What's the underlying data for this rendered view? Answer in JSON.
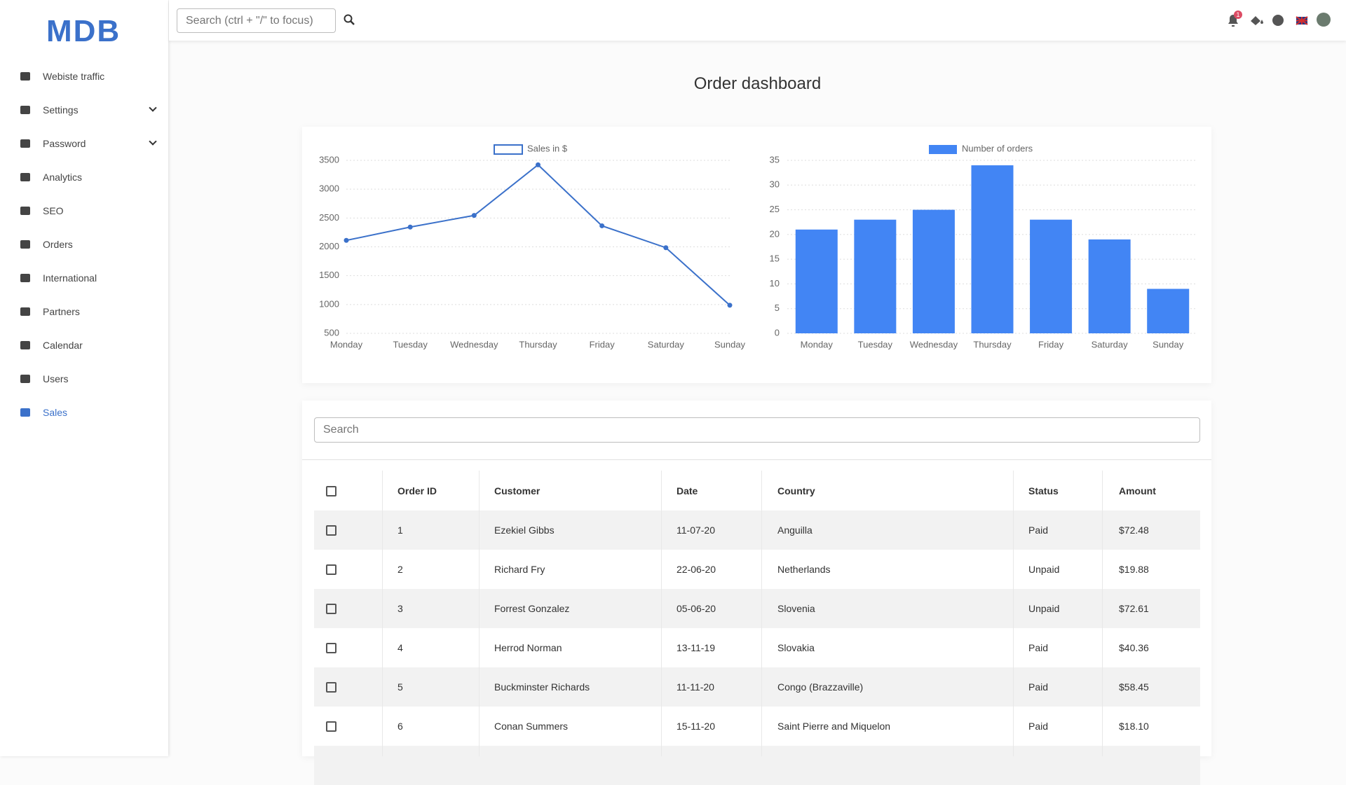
{
  "sidebar": {
    "logo": "MDB",
    "items": [
      {
        "label": "Webiste traffic"
      },
      {
        "label": "Settings",
        "expandable": true
      },
      {
        "label": "Password",
        "expandable": true
      },
      {
        "label": "Analytics"
      },
      {
        "label": "SEO"
      },
      {
        "label": "Orders"
      },
      {
        "label": "International"
      },
      {
        "label": "Partners"
      },
      {
        "label": "Calendar"
      },
      {
        "label": "Users"
      },
      {
        "label": "Sales",
        "active": true
      }
    ]
  },
  "header": {
    "search_placeholder": "Search (ctrl + \"/\" to focus)",
    "notification_count": 1
  },
  "page_title": "Order dashboard",
  "chart_data": [
    {
      "type": "line",
      "categories": [
        "Monday",
        "Tuesday",
        "Wednesday",
        "Thursday",
        "Friday",
        "Saturday",
        "Sunday"
      ],
      "series": [
        {
          "name": "Sales in $",
          "color": "#3b71ca",
          "values": [
            2112,
            2343,
            2545,
            3423,
            2365,
            1985,
            987
          ]
        }
      ],
      "ylim": [
        500,
        3500
      ],
      "yticks": [
        500,
        1000,
        1500,
        2000,
        2500,
        3000,
        3500
      ],
      "grid": true
    },
    {
      "type": "bar",
      "categories": [
        "Monday",
        "Tuesday",
        "Wednesday",
        "Thursday",
        "Friday",
        "Saturday",
        "Sunday"
      ],
      "series": [
        {
          "name": "Number of orders",
          "color": "#4285f4",
          "values": [
            21,
            23,
            25,
            34,
            23,
            19,
            9
          ]
        }
      ],
      "ylim": [
        0,
        35
      ],
      "yticks": [
        0,
        5,
        10,
        15,
        20,
        25,
        30,
        35
      ],
      "grid": true
    }
  ],
  "table": {
    "search_placeholder": "Search",
    "columns": [
      "Order ID",
      "Customer",
      "Date",
      "Country",
      "Status",
      "Amount"
    ],
    "rows": [
      [
        1,
        "Ezekiel Gibbs",
        "11-07-20",
        "Anguilla",
        "Paid",
        "$72.48"
      ],
      [
        2,
        "Richard Fry",
        "22-06-20",
        "Netherlands",
        "Unpaid",
        "$19.88"
      ],
      [
        3,
        "Forrest Gonzalez",
        "05-06-20",
        "Slovenia",
        "Unpaid",
        "$72.61"
      ],
      [
        4,
        "Herrod Norman",
        "13-11-19",
        "Slovakia",
        "Paid",
        "$40.36"
      ],
      [
        5,
        "Buckminster Richards",
        "11-11-20",
        "Congo (Brazzaville)",
        "Paid",
        "$58.45"
      ],
      [
        6,
        "Conan Summers",
        "15-11-20",
        "Saint Pierre and Miquelon",
        "Paid",
        "$18.10"
      ]
    ]
  }
}
